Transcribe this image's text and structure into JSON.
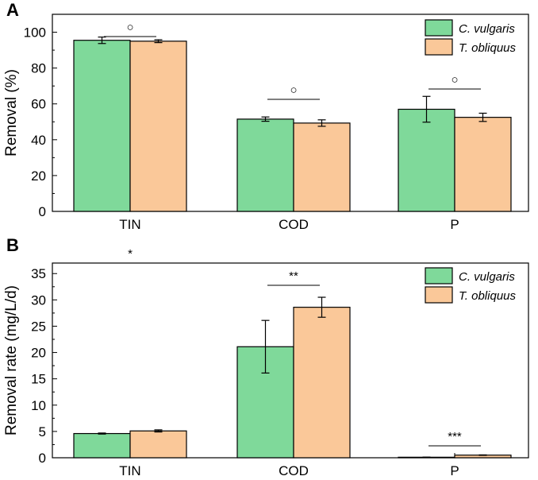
{
  "colors": {
    "series_1": "#7fd99a",
    "series_2": "#fac899",
    "axis": "#000000"
  },
  "chart_data": [
    {
      "type": "bar",
      "panel_label": "A",
      "title": "",
      "xlabel": "",
      "ylabel": "Removal (%)",
      "ylim": [
        0,
        110
      ],
      "yticks": [
        0,
        20,
        40,
        60,
        80,
        100
      ],
      "categories": [
        "TIN",
        "COD",
        "P"
      ],
      "legend_position": "top-right",
      "series": [
        {
          "name": "C. vulgaris",
          "values": [
            95.5,
            51.5,
            57.0
          ],
          "errors": [
            1.8,
            1.2,
            7.2
          ]
        },
        {
          "name": "T. obliquus",
          "values": [
            95.0,
            49.3,
            52.5
          ],
          "errors": [
            0.8,
            1.8,
            2.3
          ]
        }
      ],
      "significance": [
        "○",
        "○",
        "○"
      ]
    },
    {
      "type": "bar",
      "panel_label": "B",
      "title": "",
      "xlabel": "",
      "ylabel": "Removal rate (mg/L/d)",
      "ylim": [
        0,
        37
      ],
      "yticks": [
        0,
        5,
        10,
        15,
        20,
        25,
        30,
        35
      ],
      "categories": [
        "TIN",
        "COD",
        "P"
      ],
      "legend_position": "top-right",
      "series": [
        {
          "name": "C. vulgaris",
          "values": [
            4.6,
            21.1,
            0.1
          ],
          "errors": [
            0.1,
            5.0,
            0.02
          ]
        },
        {
          "name": "T. obliquus",
          "values": [
            5.1,
            28.6,
            0.5
          ],
          "errors": [
            0.2,
            1.9,
            0.05
          ]
        }
      ],
      "significance": [
        "*",
        "**",
        "***"
      ]
    }
  ]
}
